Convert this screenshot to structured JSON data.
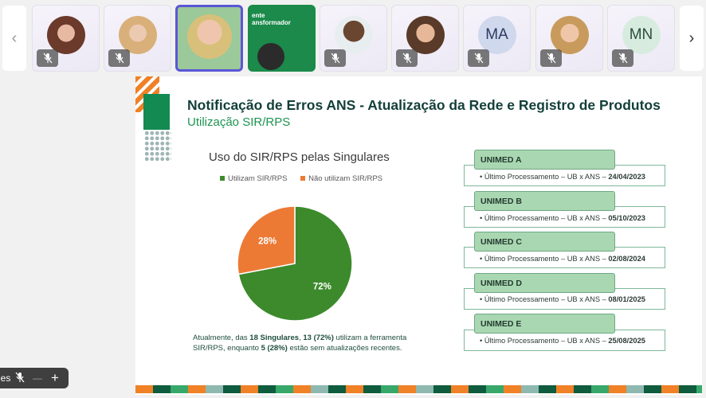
{
  "strip": {
    "prev_icon": "chevron-left-icon",
    "next_icon": "chevron-right-icon",
    "tiles": [
      {
        "type": "face",
        "muted": true
      },
      {
        "type": "face",
        "muted": true
      },
      {
        "type": "face",
        "muted": false,
        "speaking": true
      },
      {
        "type": "screen-share",
        "caption": "ente\nansformador",
        "muted": false
      },
      {
        "type": "face",
        "muted": true
      },
      {
        "type": "face",
        "muted": true
      },
      {
        "type": "initials",
        "initials": "MA",
        "muted": true
      },
      {
        "type": "face",
        "muted": true
      },
      {
        "type": "initials",
        "initials": "MN",
        "muted": true
      }
    ],
    "prev_glyph": "‹",
    "next_glyph": "›"
  },
  "slide": {
    "title": "Notificação de Erros ANS - Atualização da Rede e Registro de Produtos",
    "subtitle": "Utilização SIR/RPS",
    "chart_title": "Uso do SIR/RPS pelas Singulares",
    "note_parts": {
      "p1": "Atualmente, das ",
      "b1": "18 Singulares",
      "p2": ", ",
      "b2": "13 (72%)",
      "p3": " utilizam a ferramenta SIR/RPS, enquanto ",
      "b3": "5 (28%)",
      "p4": " estão sem atualizações recentes."
    },
    "units": [
      {
        "name": "UNIMED A",
        "line": "• Último Processamento – UB x ANS – ",
        "date": "24/04/2023"
      },
      {
        "name": "UNIMED B",
        "line": "• Último Processamento – UB x ANS – ",
        "date": "05/10/2023"
      },
      {
        "name": "UNIMED C",
        "line": "• Último Processamento – UB x ANS – ",
        "date": "02/08/2024"
      },
      {
        "name": "UNIMED D",
        "line": "• Último Processamento – UB x ANS – ",
        "date": "08/01/2025"
      },
      {
        "name": "UNIMED E",
        "line": "• Último Processamento – UB x ANS – ",
        "date": "25/08/2025"
      }
    ]
  },
  "chart_data": {
    "type": "pie",
    "title": "Uso do SIR/RPS pelas Singulares",
    "legend_position": "top",
    "slices": [
      {
        "label": "Utilizam SIR/RPS",
        "value": 72,
        "display": "72%",
        "color": "#3c8a2c"
      },
      {
        "label": "Não utilizam SIR/RPS",
        "value": 28,
        "display": "28%",
        "color": "#ec7a35"
      }
    ]
  },
  "controls": {
    "label": "es",
    "icons": [
      "mic-off-icon",
      "minus-icon",
      "plus-icon"
    ],
    "minus": "—",
    "plus": "+"
  },
  "colors": {
    "accent": "#5b56d6",
    "brand_green": "#138a52",
    "brand_orange": "#f08127"
  }
}
